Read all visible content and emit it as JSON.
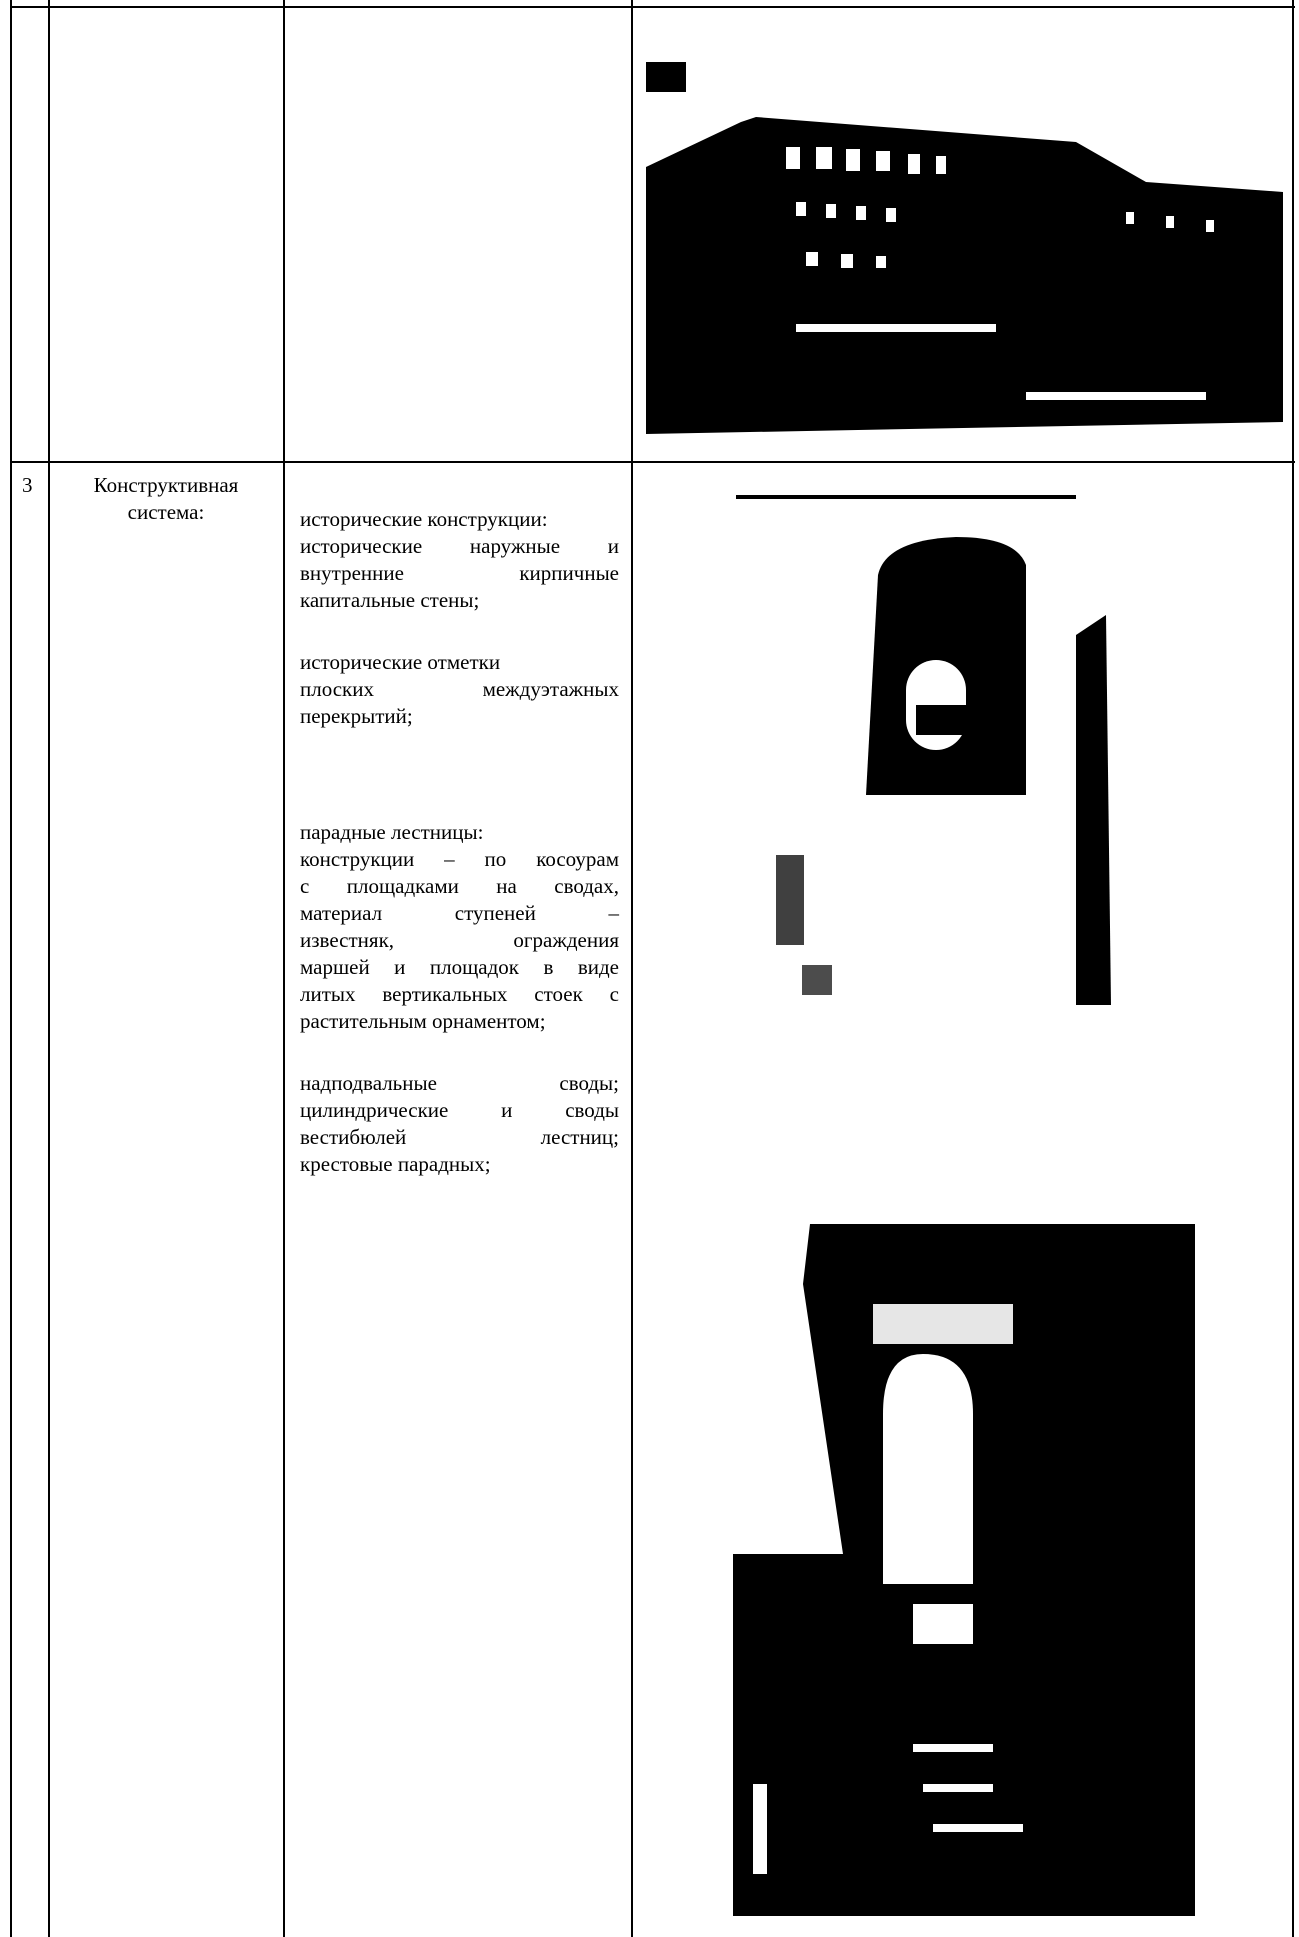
{
  "table": {
    "rows": [
      {
        "number": "3",
        "name": [
          "Конструктивная",
          "система:"
        ],
        "paragraphs": [
          [
            "исторические конструкции:",
            "исторические наружные и",
            "внутренние кирпичные",
            "капитальные стены;"
          ],
          [
            "исторические отметки",
            "плоских междуэтажных",
            "перекрытий;"
          ],
          [
            "парадные лестницы:",
            "конструкции – по косоурам",
            "с площадками на сводах,",
            "материал ступеней –",
            "известняк, ограждения",
            "маршей и площадок в виде",
            "литых вертикальных стоек с",
            "растительным орнаментом;"
          ],
          [
            "надподвальные своды;",
            "цилиндрические и своды",
            "вестибюлей лестниц;",
            "крестовые парадных;"
          ]
        ]
      }
    ]
  }
}
